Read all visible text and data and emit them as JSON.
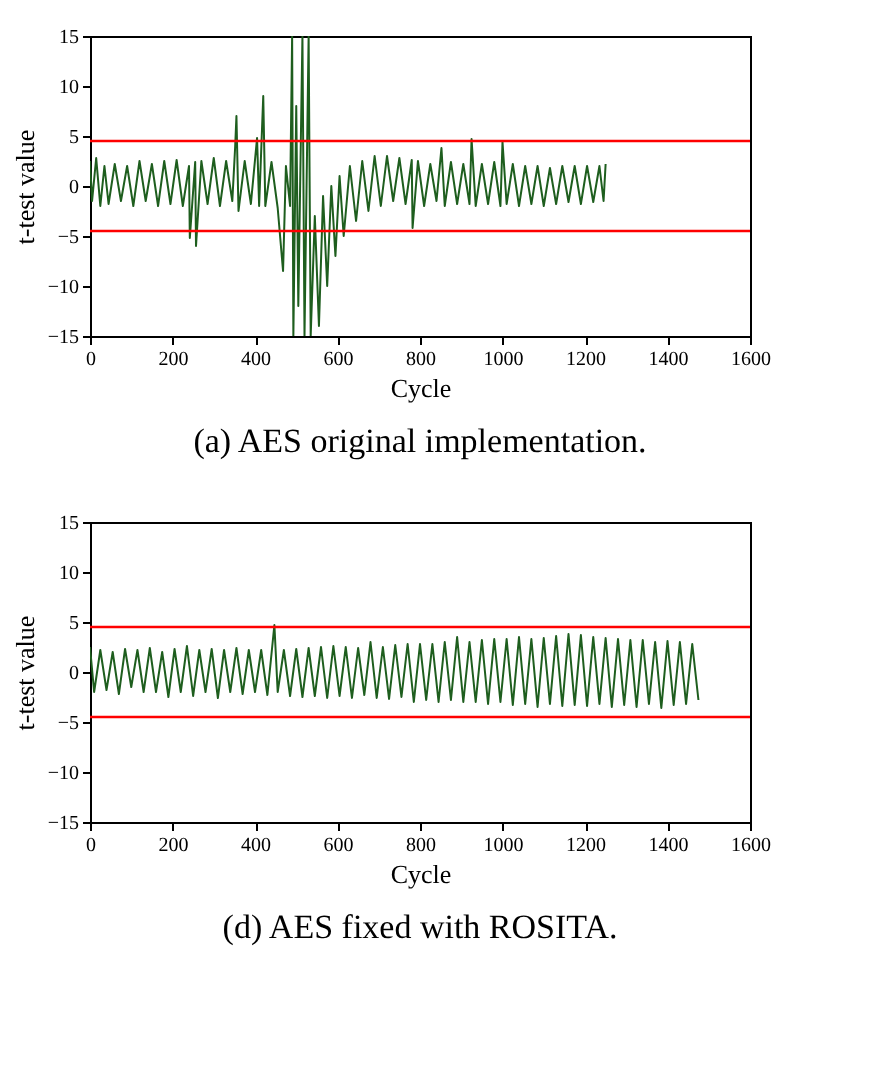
{
  "chart_data": [
    {
      "type": "line",
      "title": "(a) AES original implementation.",
      "xlabel": "Cycle",
      "ylabel": "t-test value",
      "xlim": [
        0,
        1600
      ],
      "xticks": [
        0,
        200,
        400,
        600,
        800,
        1000,
        1200,
        1400,
        1600
      ],
      "ylim": [
        -15,
        15
      ],
      "yticks": [
        -15,
        -10,
        -5,
        0,
        5,
        10,
        15
      ],
      "grid": false,
      "marker": "none",
      "line_style": "solid",
      "ref_lines": [
        {
          "axis": "y",
          "value": 4.5,
          "color": "#ff0000"
        },
        {
          "axis": "y",
          "value": -4.5,
          "color": "#ff0000"
        }
      ],
      "series": [
        {
          "color": "#1e5e1e",
          "x": [
            0,
            5,
            15,
            25,
            35,
            45,
            60,
            75,
            90,
            105,
            120,
            135,
            150,
            165,
            180,
            195,
            210,
            225,
            240,
            242,
            255,
            257,
            270,
            285,
            300,
            315,
            330,
            345,
            352,
            355,
            360,
            375,
            390,
            405,
            410,
            420,
            425,
            440,
            455,
            468,
            475,
            485,
            490,
            493,
            500,
            505,
            515,
            520,
            530,
            535,
            545,
            555,
            565,
            575,
            585,
            595,
            605,
            615,
            630,
            645,
            660,
            675,
            690,
            705,
            720,
            735,
            750,
            765,
            780,
            782,
            795,
            810,
            825,
            840,
            852,
            860,
            875,
            890,
            905,
            920,
            925,
            935,
            950,
            965,
            980,
            995,
            1000,
            1010,
            1025,
            1040,
            1055,
            1070,
            1085,
            1100,
            1115,
            1130,
            1145,
            1160,
            1175,
            1190,
            1205,
            1220,
            1235,
            1245,
            1250
          ],
          "values": [
            2.5,
            -1.5,
            2.8,
            -2,
            2,
            -1.8,
            2.2,
            -1.5,
            2,
            -2,
            2.5,
            -1.5,
            2.2,
            -2,
            2.5,
            -1.8,
            2.6,
            -2,
            2,
            -5.2,
            2.4,
            -6,
            2.5,
            -1.8,
            2.8,
            -2,
            2.5,
            -1.5,
            4,
            7,
            -2.5,
            2.5,
            -1.8,
            4.8,
            -2,
            9,
            -2,
            2.4,
            -2.2,
            -8.5,
            2,
            -2,
            15,
            -15,
            8,
            -12,
            15,
            -15,
            15,
            -15,
            -3,
            -14,
            -1,
            -10,
            0,
            -7,
            1,
            -5,
            2,
            -3.5,
            2.5,
            -2.5,
            3,
            -2,
            3,
            -1.5,
            2.8,
            -1.8,
            2.6,
            -4.2,
            2.5,
            -2,
            2.2,
            -1.5,
            3.8,
            -2,
            2.4,
            -1.8,
            2.2,
            -1.8,
            4.7,
            -2,
            2.2,
            -1.8,
            2.4,
            -2,
            4.4,
            -1.8,
            2.2,
            -2,
            2,
            -1.8,
            2,
            -2,
            1.8,
            -1.8,
            2,
            -1.6,
            2,
            -1.8,
            2,
            -1.6,
            2,
            -1.5,
            2.2
          ]
        }
      ]
    },
    {
      "type": "line",
      "title": "(d) AES fixed with ROSITA.",
      "xlabel": "Cycle",
      "ylabel": "t-test value",
      "xlim": [
        0,
        1600
      ],
      "xticks": [
        0,
        200,
        400,
        600,
        800,
        1000,
        1200,
        1400,
        1600
      ],
      "ylim": [
        -15,
        15
      ],
      "yticks": [
        -15,
        -10,
        -5,
        0,
        5,
        10,
        15
      ],
      "grid": false,
      "marker": "none",
      "line_style": "solid",
      "ref_lines": [
        {
          "axis": "y",
          "value": 4.5,
          "color": "#ff0000"
        },
        {
          "axis": "y",
          "value": -4.5,
          "color": "#ff0000"
        }
      ],
      "series": [
        {
          "color": "#1e5e1e",
          "x": [
            0,
            10,
            25,
            40,
            55,
            70,
            85,
            100,
            115,
            130,
            145,
            160,
            175,
            190,
            205,
            220,
            235,
            250,
            265,
            280,
            295,
            310,
            325,
            340,
            355,
            370,
            385,
            400,
            415,
            430,
            447,
            455,
            470,
            485,
            500,
            515,
            530,
            545,
            560,
            575,
            590,
            605,
            620,
            635,
            650,
            665,
            680,
            695,
            710,
            725,
            740,
            755,
            770,
            785,
            800,
            815,
            830,
            845,
            860,
            875,
            890,
            905,
            920,
            935,
            950,
            965,
            980,
            995,
            1010,
            1025,
            1040,
            1055,
            1070,
            1085,
            1100,
            1115,
            1130,
            1145,
            1160,
            1175,
            1190,
            1205,
            1220,
            1235,
            1250,
            1265,
            1280,
            1295,
            1310,
            1325,
            1340,
            1355,
            1370,
            1385,
            1400,
            1415,
            1430,
            1445,
            1460,
            1475
          ],
          "values": [
            2.5,
            -2,
            2.2,
            -1.8,
            2,
            -2.2,
            2.3,
            -1.5,
            2.2,
            -2,
            2.4,
            -2,
            2,
            -2.5,
            2.3,
            -2,
            2.6,
            -2.4,
            2.2,
            -2,
            2.3,
            -2.6,
            2.2,
            -2,
            2.4,
            -2.2,
            2.2,
            -2,
            2.2,
            -2.3,
            4.7,
            -2,
            2.2,
            -2.4,
            2.3,
            -2.5,
            2.4,
            -2.4,
            2.5,
            -2.6,
            2.6,
            -2.4,
            2.5,
            -2.6,
            2.4,
            -2.3,
            3,
            -2.6,
            2.5,
            -2.7,
            2.7,
            -2.5,
            2.8,
            -3,
            2.8,
            -2.8,
            2.8,
            -3,
            3,
            -2.8,
            3.5,
            -3,
            3,
            -3,
            3.2,
            -3.2,
            3.3,
            -3,
            3.3,
            -3.3,
            3.5,
            -3.2,
            3.3,
            -3.5,
            3.4,
            -3.2,
            3.6,
            -3.4,
            3.8,
            -3.3,
            3.7,
            -3.4,
            3.5,
            -3.2,
            3.4,
            -3.5,
            3.3,
            -3.3,
            3.2,
            -3.5,
            3.2,
            -3.2,
            3,
            -3.6,
            3.1,
            -3.3,
            3,
            -3.2,
            2.8,
            -2.8
          ]
        }
      ]
    }
  ]
}
